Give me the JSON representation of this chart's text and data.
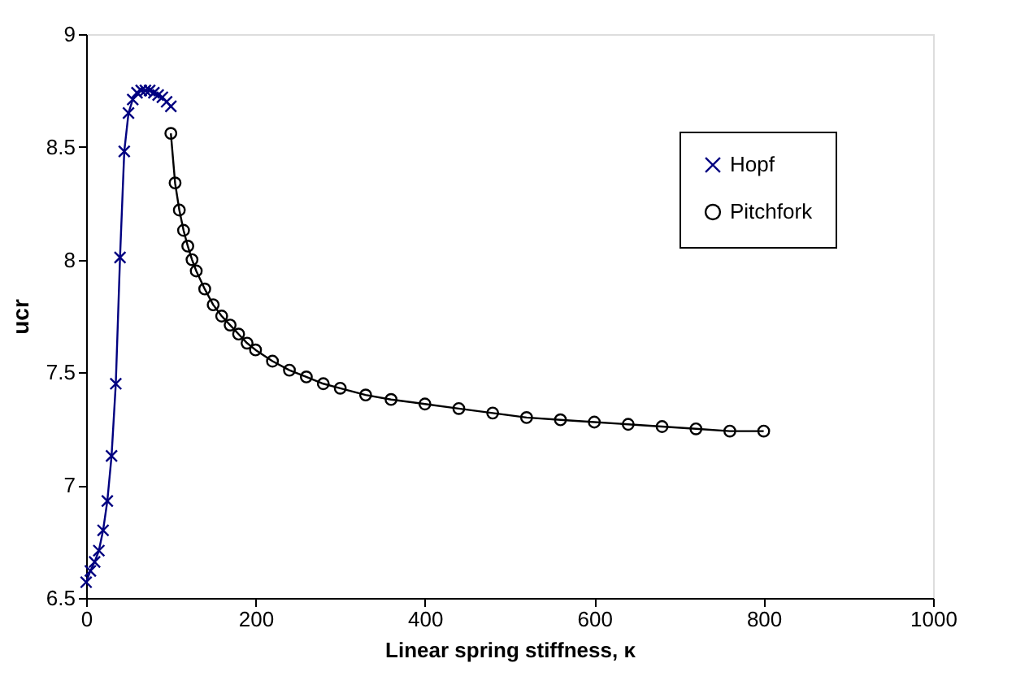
{
  "chart_data": {
    "type": "line",
    "xlabel": "Linear spring stiffness, κ",
    "ylabel": "ucr",
    "xlim": [
      0,
      1000
    ],
    "xticks": [
      0,
      200,
      400,
      600,
      800,
      1000
    ],
    "ylim": [
      6.5,
      9
    ],
    "yticks": [
      6.5,
      7,
      7.5,
      8,
      8.5,
      9
    ],
    "grid": false,
    "legend": "top right",
    "series": [
      {
        "name": "Hopf",
        "color": "#000080",
        "marker": "cross",
        "x": [
          0,
          5,
          10,
          15,
          20,
          25,
          30,
          35,
          40,
          45,
          50,
          55,
          60,
          65,
          70,
          75,
          80,
          85,
          90,
          95,
          100
        ],
        "values": [
          6.57,
          6.62,
          6.66,
          6.71,
          6.8,
          6.93,
          7.13,
          7.45,
          8.01,
          8.48,
          8.65,
          8.71,
          8.74,
          8.75,
          8.75,
          8.75,
          8.74,
          8.73,
          8.72,
          8.7,
          8.68
        ]
      },
      {
        "name": "Pitchfork",
        "color": "#000000",
        "marker": "circle",
        "x": [
          100,
          105,
          110,
          115,
          120,
          125,
          130,
          140,
          150,
          160,
          170,
          180,
          190,
          200,
          220,
          240,
          260,
          280,
          300,
          330,
          360,
          400,
          440,
          480,
          520,
          560,
          600,
          640,
          680,
          720,
          760,
          800
        ],
        "values": [
          8.56,
          8.34,
          8.22,
          8.13,
          8.06,
          8.0,
          7.95,
          7.87,
          7.8,
          7.75,
          7.71,
          7.67,
          7.63,
          7.6,
          7.55,
          7.51,
          7.48,
          7.45,
          7.43,
          7.4,
          7.38,
          7.36,
          7.34,
          7.32,
          7.3,
          7.29,
          7.28,
          7.27,
          7.26,
          7.25,
          7.24,
          7.24
        ]
      }
    ]
  }
}
